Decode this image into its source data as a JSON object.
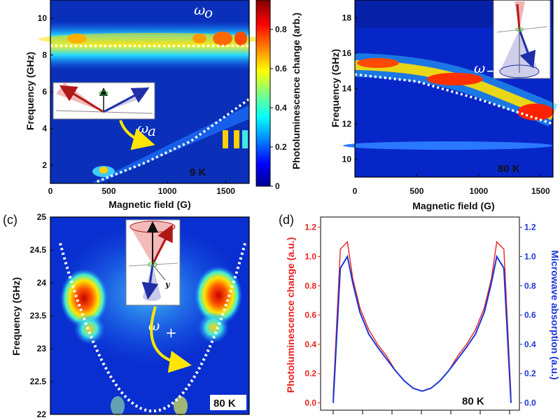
{
  "chart_data": [
    {
      "panel_label": "",
      "type": "heatmap",
      "xlabel": "Magnetic field (G)",
      "ylabel": "Frequency (GHz)",
      "xlim": [
        0,
        1700
      ],
      "ylim": [
        1,
        11
      ],
      "x_ticks": [
        "0",
        "500",
        "1000",
        "1500"
      ],
      "y_ticks": [
        "2",
        "4",
        "6",
        "8",
        "10"
      ],
      "temperature": "9 K",
      "annotations": [
        "ω",
        "o",
        "ω",
        "a"
      ],
      "series": [
        {
          "points": [
            [
              0,
              8.5
            ],
            [
              1700,
              8.5
            ]
          ]
        },
        {
          "points": [
            [
              400,
              1.1
            ],
            [
              800,
              2.1
            ],
            [
              1200,
              3.3
            ],
            [
              1700,
              5.6
            ]
          ]
        }
      ]
    },
    {
      "type": "colorbar",
      "label": "Photoluminescence change (arb.)",
      "ticks": [
        "0",
        "0.2",
        "0.4",
        "0.6",
        "0.8"
      ],
      "range": [
        0,
        0.95
      ]
    },
    {
      "panel_label": "",
      "type": "heatmap",
      "xlabel": "Magnetic field (G)",
      "ylabel": "Frequency (GHz)",
      "xlim": [
        0,
        1600
      ],
      "ylim": [
        9,
        19
      ],
      "x_ticks": [
        "0",
        "500",
        "1000",
        "1500"
      ],
      "y_ticks": [
        "10",
        "12",
        "14",
        "16",
        "18"
      ],
      "temperature": "80 K",
      "annotations": [
        "ω",
        "−"
      ],
      "series": [
        {
          "points": [
            [
              0,
              14.8
            ],
            [
              500,
              14.4
            ],
            [
              1000,
              13.4
            ],
            [
              1600,
              12.0
            ]
          ]
        }
      ]
    },
    {
      "panel_label": "(c)",
      "type": "heatmap",
      "xlabel": "",
      "ylabel": "Frequency (GHz)",
      "ylim": [
        22,
        25
      ],
      "y_ticks": [
        "22",
        "22.5",
        "23",
        "23.5",
        "24",
        "24.5",
        "25"
      ],
      "temperature": "80 K",
      "annotations": [
        "ω",
        "+",
        "y"
      ],
      "series": [
        {
          "points": [
            [
              -1,
              24.6
            ],
            [
              -0.5,
              22.9
            ],
            [
              0,
              22.05
            ],
            [
              0.5,
              22.9
            ],
            [
              1,
              24.6
            ]
          ]
        }
      ]
    },
    {
      "panel_label": "(d)",
      "type": "line",
      "ylabel": "Photoluminescence change (a.u.)",
      "ylabel_right": "Microwave absorption (a.u.)",
      "ylim": [
        -0.05,
        1.27
      ],
      "y_ticks": [
        "0.0",
        "0.2",
        "0.4",
        "0.6",
        "0.8",
        "1.0",
        "1.2"
      ],
      "y_ticks_right": [
        "0.0",
        "0.2",
        "0.4",
        "0.6",
        "0.8",
        "1.0",
        "1.2"
      ],
      "temperature": "80 K",
      "colors": {
        "photoluminescence": "#e8221e",
        "absorption": "#1d35d8"
      },
      "series": [
        {
          "x": [
            -1,
            -0.92,
            -0.84,
            -0.78,
            -0.7,
            -0.6,
            -0.5,
            -0.4,
            -0.3,
            -0.2,
            -0.1,
            0,
            0.1,
            0.2,
            0.3,
            0.4,
            0.5,
            0.6,
            0.7,
            0.78,
            0.84,
            0.92,
            1
          ],
          "values": [
            0.0,
            0.92,
            1.0,
            0.82,
            0.62,
            0.47,
            0.38,
            0.3,
            0.22,
            0.15,
            0.1,
            0.08,
            0.1,
            0.15,
            0.22,
            0.3,
            0.38,
            0.47,
            0.62,
            0.82,
            1.0,
            0.92,
            0.0
          ]
        },
        {
          "x": [
            -1,
            -0.92,
            -0.84,
            -0.78,
            -0.7,
            -0.6,
            -0.5,
            -0.4,
            -0.3,
            -0.2,
            -0.1,
            0,
            0.1,
            0.2,
            0.3,
            0.4,
            0.5,
            0.6,
            0.7,
            0.78,
            0.84,
            0.92,
            1
          ],
          "values": [
            0.05,
            1.05,
            1.1,
            0.85,
            0.65,
            0.5,
            0.4,
            0.32,
            0.22,
            0.15,
            0.1,
            0.08,
            0.1,
            0.15,
            0.22,
            0.32,
            0.4,
            0.5,
            0.65,
            0.85,
            1.1,
            1.05,
            0.05
          ]
        }
      ]
    }
  ]
}
